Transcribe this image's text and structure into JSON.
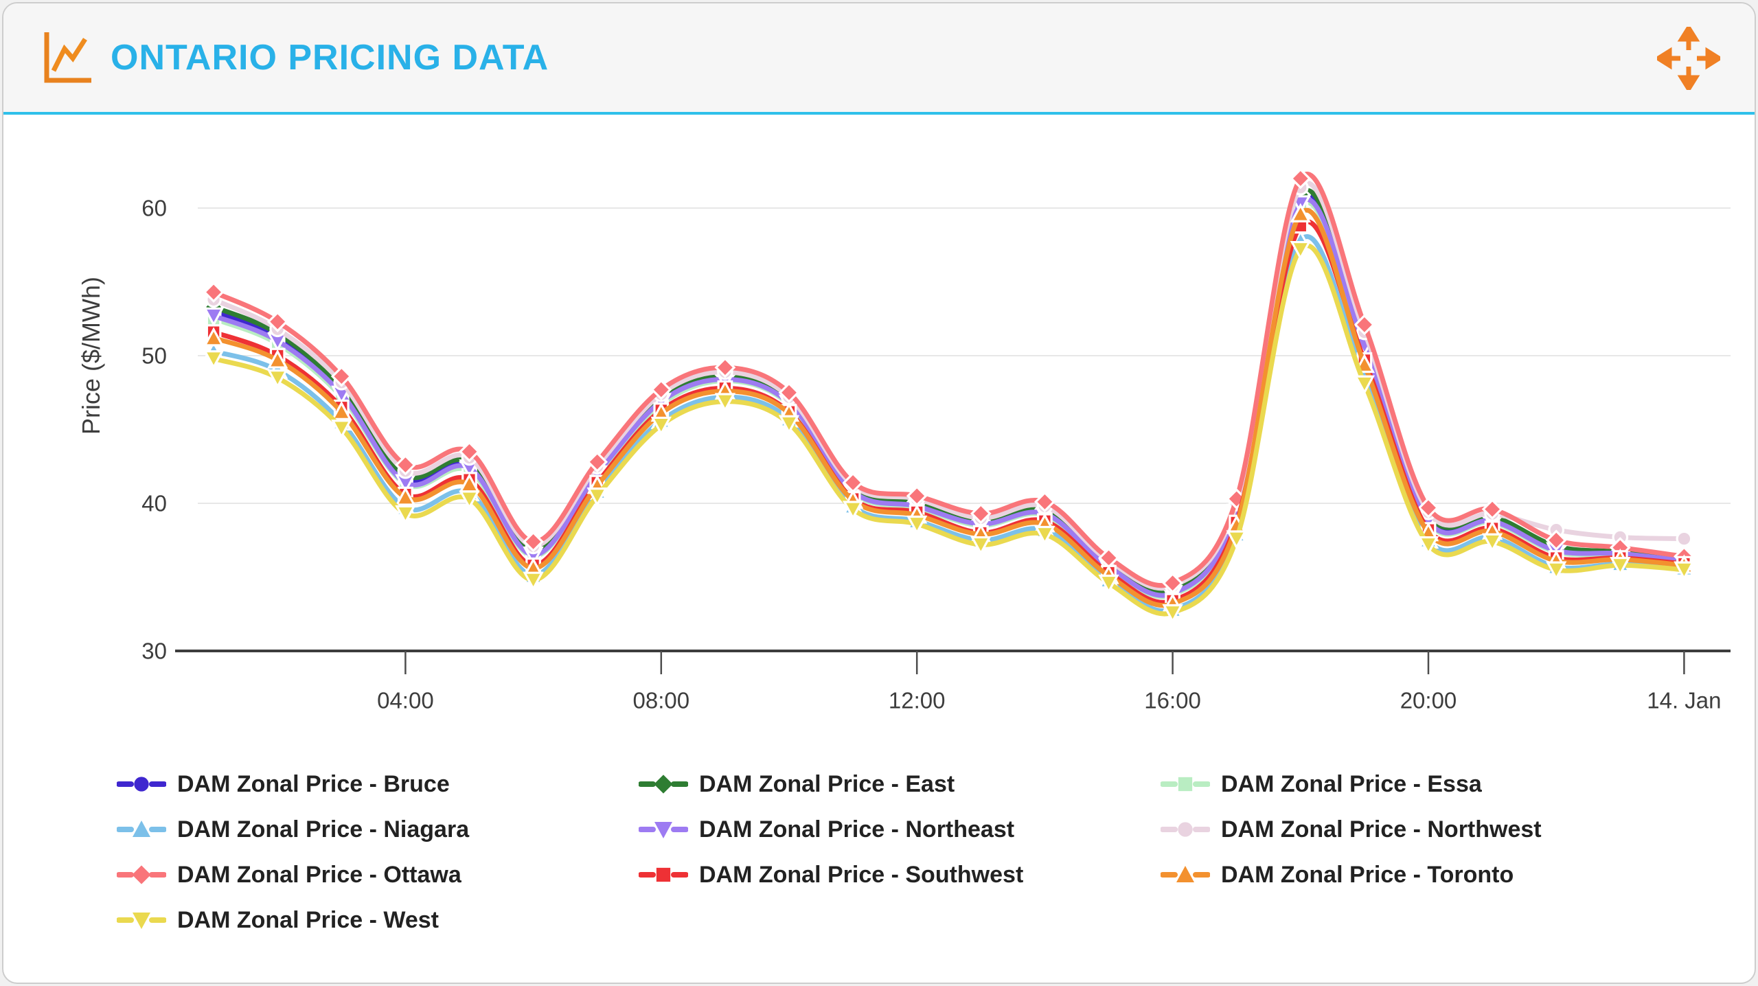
{
  "header": {
    "title": "ONTARIO PRICING DATA",
    "title_color": "#29b1e8",
    "divider_color": "#2fc0ea",
    "icon_color": "#e8821e",
    "move_icon_color": "#f08024"
  },
  "chart_data": {
    "type": "line",
    "title": "ONTARIO PRICING DATA",
    "xlabel": "",
    "ylabel": "Price ($/MWh)",
    "ylim": [
      30,
      63
    ],
    "y_ticks": [
      30,
      40,
      50,
      60
    ],
    "grid": "horizontal-only",
    "legend_position": "bottom",
    "x_unit": "hour of day, 13-14 Jan",
    "x": [
      1,
      2,
      3,
      4,
      5,
      6,
      7,
      8,
      9,
      10,
      11,
      12,
      13,
      14,
      15,
      16,
      17,
      18,
      19,
      20,
      21,
      22,
      23,
      24
    ],
    "x_tick_labels": [
      {
        "label": "04:00",
        "hour": 4
      },
      {
        "label": "08:00",
        "hour": 8
      },
      {
        "label": "12:00",
        "hour": 12
      },
      {
        "label": "16:00",
        "hour": 16
      },
      {
        "label": "20:00",
        "hour": 20
      },
      {
        "label": "14. Jan",
        "hour": 24
      }
    ],
    "series": [
      {
        "name": "DAM Zonal Price - Bruce",
        "zone": "bruce",
        "color": "#3f27cf",
        "marker": "circle",
        "values": [
          53.0,
          51.2,
          47.6,
          41.7,
          42.6,
          36.7,
          42.2,
          47.0,
          48.6,
          46.9,
          40.9,
          40.0,
          38.7,
          39.5,
          35.8,
          34.0,
          39.5,
          60.7,
          51.0,
          39.0,
          39.0,
          36.9,
          36.7,
          36.1
        ]
      },
      {
        "name": "DAM Zonal Price - East",
        "zone": "east",
        "color": "#2e7d32",
        "marker": "diamond",
        "values": [
          53.3,
          51.5,
          47.8,
          41.9,
          42.8,
          36.8,
          42.3,
          47.2,
          48.7,
          47.0,
          41.0,
          40.1,
          38.8,
          39.6,
          35.9,
          34.2,
          39.7,
          60.9,
          51.2,
          39.2,
          39.1,
          37.1,
          36.7,
          36.2
        ]
      },
      {
        "name": "DAM Zonal Price - Essa",
        "zone": "essa",
        "color": "#b9edc2",
        "marker": "square",
        "values": [
          52.5,
          50.8,
          47.2,
          41.3,
          42.2,
          36.4,
          41.9,
          46.7,
          48.3,
          46.7,
          40.7,
          39.7,
          38.5,
          39.2,
          35.6,
          33.8,
          39.2,
          60.1,
          50.5,
          38.7,
          38.7,
          36.7,
          36.5,
          36.0
        ]
      },
      {
        "name": "DAM Zonal Price - Niagara",
        "zone": "niagara",
        "color": "#7cc0e9",
        "marker": "triangle-up",
        "values": [
          50.3,
          49.0,
          45.5,
          39.7,
          40.7,
          35.1,
          40.8,
          45.6,
          47.2,
          45.7,
          39.8,
          38.8,
          37.5,
          38.2,
          34.8,
          32.8,
          37.9,
          57.8,
          48.6,
          37.5,
          37.7,
          35.7,
          35.9,
          35.6
        ]
      },
      {
        "name": "DAM Zonal Price - Northeast",
        "zone": "northeast",
        "color": "#9d7bf2",
        "marker": "triangle-down",
        "values": [
          52.7,
          51.0,
          47.4,
          41.4,
          42.4,
          36.5,
          42.0,
          46.9,
          48.4,
          46.8,
          40.8,
          39.8,
          38.6,
          39.3,
          35.7,
          33.9,
          39.4,
          60.3,
          50.7,
          38.8,
          38.8,
          36.8,
          36.6,
          36.1
        ]
      },
      {
        "name": "DAM Zonal Price - Northwest",
        "zone": "northwest",
        "color": "#e9d3e0",
        "marker": "circle",
        "values": [
          53.8,
          51.8,
          48.2,
          42.2,
          43.1,
          37.1,
          42.5,
          47.4,
          48.9,
          47.2,
          41.2,
          40.3,
          39.0,
          39.8,
          36.1,
          34.4,
          40.0,
          61.4,
          51.6,
          39.4,
          39.3,
          38.2,
          37.7,
          37.6
        ]
      },
      {
        "name": "DAM Zonal Price - Ottawa",
        "zone": "ottawa",
        "color": "#f9757a",
        "marker": "diamond",
        "values": [
          54.3,
          52.3,
          48.6,
          42.6,
          43.5,
          37.4,
          42.8,
          47.7,
          49.2,
          47.5,
          41.4,
          40.5,
          39.3,
          40.1,
          36.3,
          34.6,
          40.3,
          62.0,
          52.1,
          39.7,
          39.6,
          37.5,
          37.0,
          36.4
        ]
      },
      {
        "name": "DAM Zonal Price - Southwest",
        "zone": "southwest",
        "color": "#ee3135",
        "marker": "square",
        "values": [
          51.6,
          50.0,
          46.5,
          40.6,
          41.6,
          35.8,
          41.4,
          46.3,
          47.8,
          46.2,
          40.3,
          39.4,
          38.0,
          38.8,
          35.3,
          33.4,
          38.7,
          58.8,
          49.7,
          38.2,
          38.3,
          36.3,
          36.3,
          35.9
        ]
      },
      {
        "name": "DAM Zonal Price - Toronto",
        "zone": "toronto",
        "color": "#f3912f",
        "marker": "triangle-up",
        "values": [
          51.2,
          49.7,
          46.2,
          40.4,
          41.3,
          35.6,
          41.2,
          46.1,
          47.6,
          46.1,
          40.2,
          39.2,
          37.9,
          38.6,
          35.1,
          33.2,
          38.5,
          59.6,
          49.4,
          38.0,
          38.1,
          36.1,
          36.2,
          35.8
        ]
      },
      {
        "name": "DAM Zonal Price - West",
        "zone": "west",
        "color": "#ead94f",
        "marker": "triangle-down",
        "values": [
          49.8,
          48.5,
          45.1,
          39.3,
          40.3,
          34.8,
          40.5,
          45.3,
          46.9,
          45.4,
          39.6,
          38.6,
          37.2,
          37.9,
          34.6,
          32.6,
          37.6,
          57.2,
          48.1,
          37.2,
          37.4,
          35.5,
          35.8,
          35.5
        ]
      }
    ],
    "axis_text_color": "#3d3d3d",
    "grid_color": "#e7e7e7",
    "axis_line_color": "#3d3d3d"
  }
}
